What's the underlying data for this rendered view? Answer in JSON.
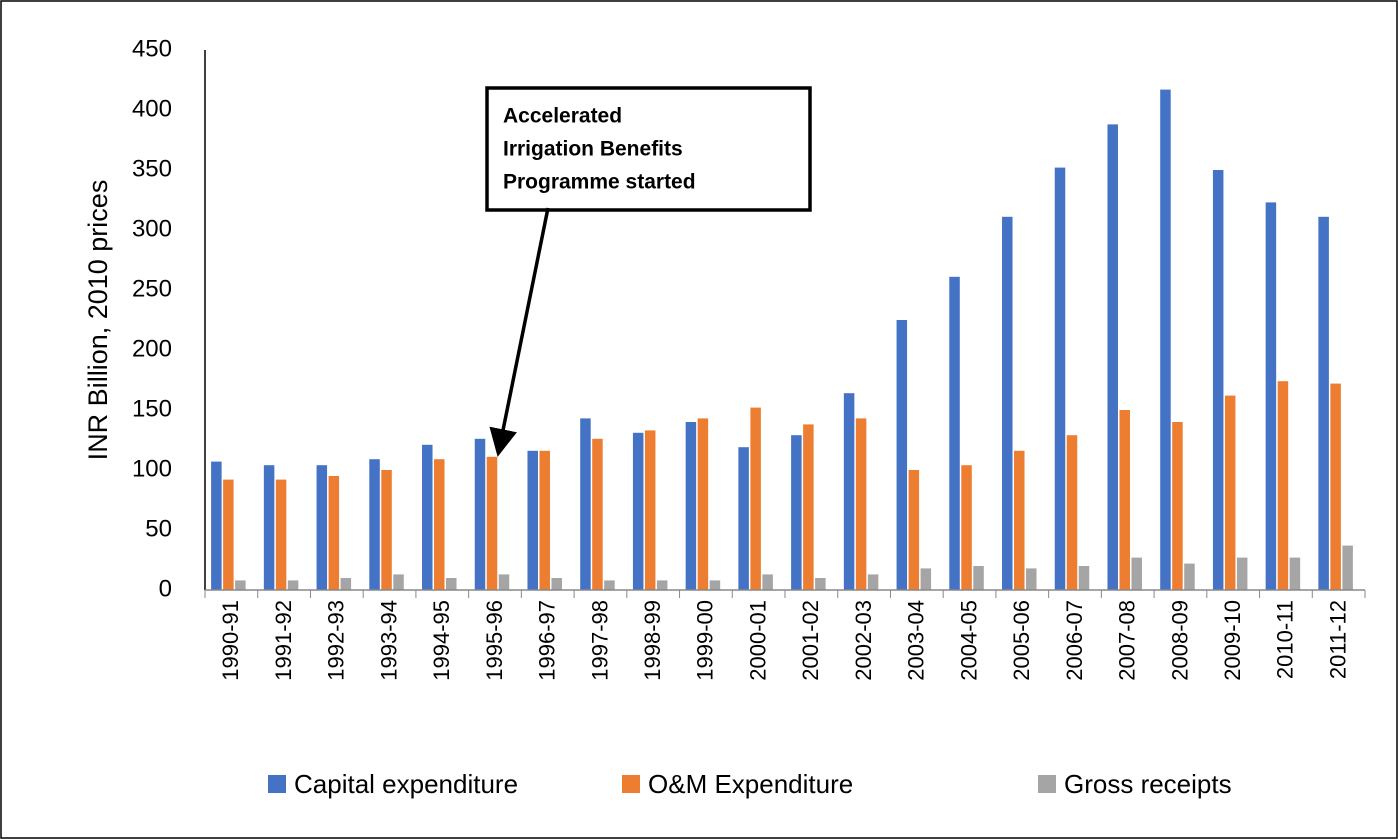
{
  "chart_data": {
    "type": "bar",
    "y_label": "INR Billion, 2010 prices",
    "annotation": [
      "Accelerated",
      "Irrigation Benefits",
      "Programme started"
    ],
    "annotation_target": "1995-96",
    "categories": [
      "1990-91",
      "1991-92",
      "1992-93",
      "1993-94",
      "1994-95",
      "1995-96",
      "1996-97",
      "1997-98",
      "1998-99",
      "1999-00",
      "2000-01",
      "2001-02",
      "2002-03",
      "2003-04",
      "2004-05",
      "2005-06",
      "2006-07",
      "2007-08",
      "2008-09",
      "2009-10",
      "2010-11",
      "2011-12"
    ],
    "series": [
      {
        "name": "Capital expenditure",
        "color": "#4472c4",
        "values": [
          107,
          104,
          104,
          109,
          121,
          126,
          116,
          143,
          131,
          140,
          119,
          129,
          164,
          225,
          261,
          311,
          352,
          388,
          417,
          350,
          323,
          311
        ]
      },
      {
        "name": "O&M Expenditure",
        "color": "#ed7d31",
        "values": [
          92,
          92,
          95,
          100,
          109,
          111,
          116,
          126,
          133,
          143,
          152,
          138,
          143,
          100,
          104,
          116,
          129,
          150,
          140,
          162,
          174,
          172
        ]
      },
      {
        "name": "Gross receipts",
        "color": "#a5a5a5",
        "values": [
          8,
          8,
          10,
          13,
          10,
          13,
          10,
          8,
          8,
          8,
          13,
          10,
          13,
          18,
          20,
          18,
          20,
          27,
          22,
          27,
          27,
          37
        ]
      }
    ],
    "ylim": [
      0,
      450
    ],
    "yticks": [
      0,
      50,
      100,
      150,
      200,
      250,
      300,
      350,
      400,
      450
    ],
    "grid": false,
    "legend": "bottom"
  }
}
